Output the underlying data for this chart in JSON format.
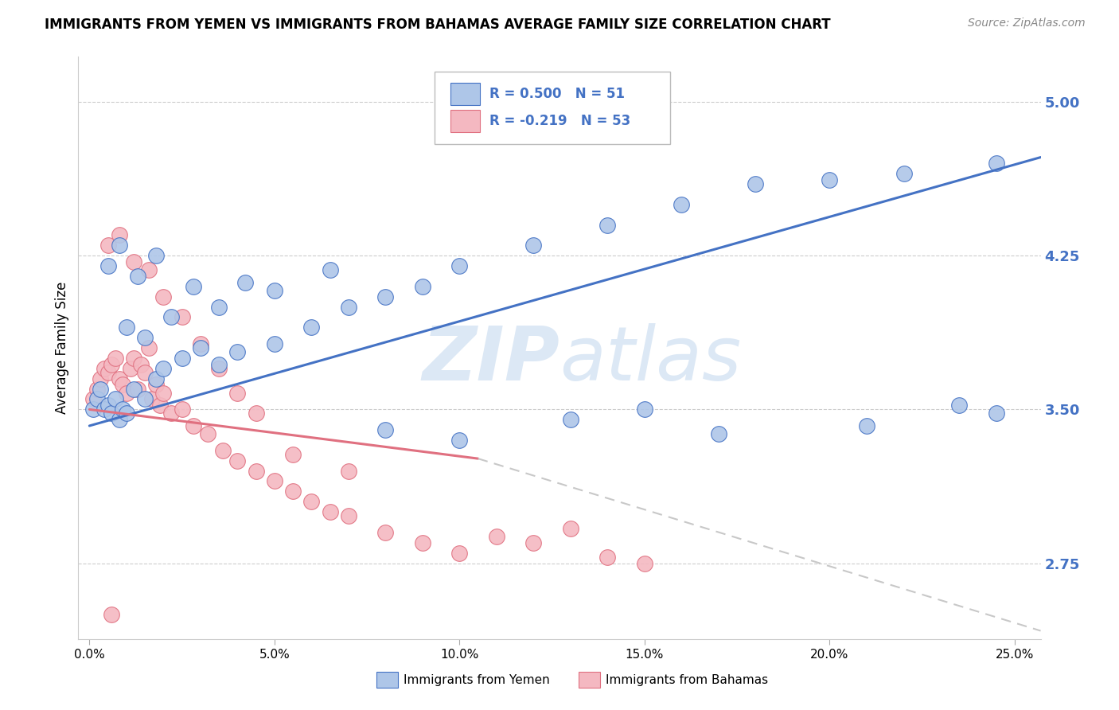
{
  "title": "IMMIGRANTS FROM YEMEN VS IMMIGRANTS FROM BAHAMAS AVERAGE FAMILY SIZE CORRELATION CHART",
  "source": "Source: ZipAtlas.com",
  "ylabel": "Average Family Size",
  "ylim": [
    2.38,
    5.22
  ],
  "xlim": [
    -0.003,
    0.257
  ],
  "yticks": [
    2.75,
    3.5,
    4.25,
    5.0
  ],
  "xticks": [
    0.0,
    0.05,
    0.1,
    0.15,
    0.2,
    0.25
  ],
  "xtick_labels": [
    "0.0%",
    "5.0%",
    "10.0%",
    "15.0%",
    "20.0%",
    "25.0%"
  ],
  "legend_r1": "R = 0.500",
  "legend_n1": "N = 51",
  "legend_r2": "R = -0.219",
  "legend_n2": "N = 53",
  "color_yemen": "#aec6e8",
  "color_bahamas": "#f4b8c1",
  "color_line_yemen": "#4472c4",
  "color_line_bahamas": "#e07080",
  "color_trendline_ext": "#c8c8c8",
  "color_ytick": "#4472c4",
  "watermark_color": "#dce8f5",
  "yemen_x": [
    0.001,
    0.002,
    0.003,
    0.004,
    0.005,
    0.006,
    0.007,
    0.008,
    0.009,
    0.01,
    0.012,
    0.015,
    0.018,
    0.02,
    0.025,
    0.03,
    0.035,
    0.04,
    0.05,
    0.06,
    0.07,
    0.08,
    0.09,
    0.1,
    0.12,
    0.14,
    0.16,
    0.18,
    0.2,
    0.22,
    0.245,
    0.005,
    0.008,
    0.01,
    0.013,
    0.015,
    0.018,
    0.022,
    0.028,
    0.035,
    0.042,
    0.05,
    0.065,
    0.08,
    0.1,
    0.13,
    0.15,
    0.17,
    0.21,
    0.235,
    0.245
  ],
  "yemen_y": [
    3.5,
    3.55,
    3.6,
    3.5,
    3.52,
    3.48,
    3.55,
    3.45,
    3.5,
    3.48,
    3.6,
    3.55,
    3.65,
    3.7,
    3.75,
    3.8,
    3.72,
    3.78,
    3.82,
    3.9,
    4.0,
    4.05,
    4.1,
    4.2,
    4.3,
    4.4,
    4.5,
    4.6,
    4.62,
    4.65,
    4.7,
    4.2,
    4.3,
    3.9,
    4.15,
    3.85,
    4.25,
    3.95,
    4.1,
    4.0,
    4.12,
    4.08,
    4.18,
    3.4,
    3.35,
    3.45,
    3.5,
    3.38,
    3.42,
    3.52,
    3.48
  ],
  "bahamas_x": [
    0.001,
    0.002,
    0.003,
    0.004,
    0.005,
    0.006,
    0.007,
    0.008,
    0.009,
    0.01,
    0.011,
    0.012,
    0.013,
    0.014,
    0.015,
    0.016,
    0.017,
    0.018,
    0.019,
    0.02,
    0.022,
    0.025,
    0.028,
    0.032,
    0.036,
    0.04,
    0.045,
    0.05,
    0.055,
    0.06,
    0.065,
    0.07,
    0.08,
    0.09,
    0.1,
    0.11,
    0.12,
    0.13,
    0.14,
    0.15,
    0.005,
    0.008,
    0.012,
    0.016,
    0.02,
    0.025,
    0.03,
    0.035,
    0.04,
    0.045,
    0.055,
    0.07,
    0.006
  ],
  "bahamas_y": [
    3.55,
    3.6,
    3.65,
    3.7,
    3.68,
    3.72,
    3.75,
    3.65,
    3.62,
    3.58,
    3.7,
    3.75,
    3.6,
    3.72,
    3.68,
    3.8,
    3.55,
    3.62,
    3.52,
    3.58,
    3.48,
    3.5,
    3.42,
    3.38,
    3.3,
    3.25,
    3.2,
    3.15,
    3.1,
    3.05,
    3.0,
    2.98,
    2.9,
    2.85,
    2.8,
    2.88,
    2.85,
    2.92,
    2.78,
    2.75,
    4.3,
    4.35,
    4.22,
    4.18,
    4.05,
    3.95,
    3.82,
    3.7,
    3.58,
    3.48,
    3.28,
    3.2,
    2.5
  ],
  "line_yemen_x0": 0.0,
  "line_yemen_x1": 0.257,
  "line_yemen_y0": 3.42,
  "line_yemen_y1": 4.73,
  "line_bahamas_solid_x0": 0.0,
  "line_bahamas_solid_x1": 0.105,
  "line_bahamas_solid_y0": 3.5,
  "line_bahamas_solid_y1": 3.26,
  "line_bahamas_dash_x0": 0.105,
  "line_bahamas_dash_x1": 0.257,
  "line_bahamas_dash_y0": 3.26,
  "line_bahamas_dash_y1": 2.42
}
